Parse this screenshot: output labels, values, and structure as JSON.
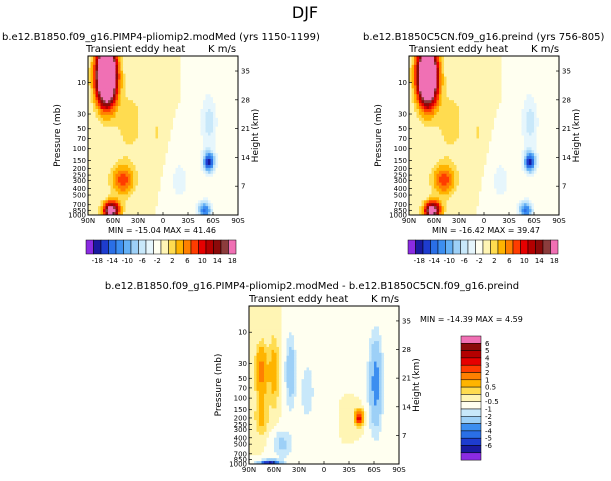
{
  "figure": {
    "title": "DJF",
    "plot_label": "Transient eddy heat",
    "units": "K m/s",
    "y_label": "Pressure (mb)",
    "y2_label": "Height (km)"
  },
  "axes": {
    "x_ticks": [
      "90N",
      "60N",
      "30N",
      "0",
      "30S",
      "60S",
      "90S"
    ],
    "x_values": [
      90,
      60,
      30,
      0,
      -30,
      -60,
      -90
    ],
    "p_ticks": [
      "10",
      "30",
      "50",
      "70",
      "100",
      "150",
      "200",
      "250",
      "300",
      "400",
      "500",
      "700",
      "850",
      "1000"
    ],
    "p_values": [
      10,
      30,
      50,
      70,
      100,
      150,
      200,
      250,
      300,
      400,
      500,
      700,
      850,
      1000
    ],
    "p_range": [
      1000,
      4
    ],
    "h_ticks": [
      "35",
      "28",
      "21",
      "14",
      "7"
    ],
    "h_values": [
      35,
      28,
      21,
      14,
      7
    ]
  },
  "colorbars": {
    "full": {
      "labels": [
        "-18",
        "-14",
        "-10",
        "-6",
        "-2",
        "2",
        "6",
        "10",
        "14",
        "18"
      ],
      "colors": [
        "#8b2be2",
        "#1a1aa0",
        "#1e3ccf",
        "#2a6fe6",
        "#3c8ef0",
        "#64b0f5",
        "#9dd0f7",
        "#c8e8fa",
        "#e6f6fc",
        "#fffff0",
        "#fff5b4",
        "#ffdc50",
        "#ffb400",
        "#ff8000",
        "#ff3c00",
        "#e60000",
        "#b40000",
        "#8c0a0a",
        "#8c3c3c",
        "#f070b4"
      ]
    },
    "diff": {
      "labels": [
        "6",
        "5",
        "4",
        "3",
        "2",
        "1",
        "0.5",
        "0",
        "-0.5",
        "-1",
        "-2",
        "-3",
        "-4",
        "-5",
        "-6"
      ],
      "colors": [
        "#f070b4",
        "#8c0a0a",
        "#b40000",
        "#e60000",
        "#ff3c00",
        "#ff8000",
        "#ffb400",
        "#ffdc50",
        "#fff5b4",
        "#fffff0",
        "#c8e8fa",
        "#9dd0f7",
        "#3c8ef0",
        "#2a6fe6",
        "#1e3ccf",
        "#1a1aa0",
        "#8b2be2"
      ]
    }
  },
  "panels": [
    {
      "id": "left",
      "title": "b.e12.B1850.f09_g16.PIMP4-pliomip2.modMed (yrs 1150-1199)",
      "stats": "MIN = -15.04   MAX = 41.46"
    },
    {
      "id": "right",
      "title": "b.e12.B1850C5CN.f09_g16.preind (yrs 756-805)",
      "stats": "MIN = -16.42   MAX = 39.47"
    },
    {
      "id": "diff",
      "title": "b.e12.B1850.f09_g16.PIMP4-pliomip2.modMed - b.e12.B1850C5CN.f09_g16.preind",
      "stats": "MIN = -14.39   MAX =   4.59"
    }
  ],
  "chart_data": [
    {
      "type": "heatmap",
      "title": "b.e12.B1850.f09_g16.PIMP4-pliomip2.modMed (yrs 1150-1199)",
      "subtitle": "Transient eddy heat (K m/s)",
      "xlabel": "Latitude",
      "ylabel": "Pressure (mb)",
      "y2label": "Height (km)",
      "xlim": [
        90,
        -90
      ],
      "ylim": [
        1000,
        4
      ],
      "min": -15.04,
      "max": 41.46,
      "levels": [
        -18,
        -14,
        -10,
        -6,
        -2,
        2,
        6,
        10,
        14,
        18
      ],
      "features": [
        {
          "lat": 68,
          "p": 12,
          "value": 41,
          "kind": "max"
        },
        {
          "lat": 62,
          "p": 800,
          "value": 18,
          "kind": "max"
        },
        {
          "lat": 48,
          "p": 250,
          "value": 12,
          "kind": "max"
        },
        {
          "lat": -55,
          "p": 150,
          "value": -15,
          "kind": "min"
        },
        {
          "lat": -50,
          "p": 800,
          "value": -12,
          "kind": "min"
        }
      ]
    },
    {
      "type": "heatmap",
      "title": "b.e12.B1850C5CN.f09_g16.preind (yrs 756-805)",
      "subtitle": "Transient eddy heat (K m/s)",
      "xlabel": "Latitude",
      "ylabel": "Pressure (mb)",
      "y2label": "Height (km)",
      "xlim": [
        90,
        -90
      ],
      "ylim": [
        1000,
        4
      ],
      "min": -16.42,
      "max": 39.47,
      "levels": [
        -18,
        -14,
        -10,
        -6,
        -2,
        2,
        6,
        10,
        14,
        18
      ],
      "features": [
        {
          "lat": 68,
          "p": 12,
          "value": 39,
          "kind": "max"
        },
        {
          "lat": 62,
          "p": 800,
          "value": 18,
          "kind": "max"
        },
        {
          "lat": 48,
          "p": 250,
          "value": 12,
          "kind": "max"
        },
        {
          "lat": -55,
          "p": 200,
          "value": -16,
          "kind": "min"
        },
        {
          "lat": -50,
          "p": 800,
          "value": -12,
          "kind": "min"
        }
      ]
    },
    {
      "type": "heatmap",
      "title": "b.e12.B1850.f09_g16.PIMP4-pliomip2.modMed - b.e12.B1850C5CN.f09_g16.preind",
      "subtitle": "Transient eddy heat (K m/s)",
      "xlabel": "Latitude",
      "ylabel": "Pressure (mb)",
      "y2label": "Height (km)",
      "xlim": [
        90,
        -90
      ],
      "ylim": [
        1000,
        4
      ],
      "min": -14.39,
      "max": 4.59,
      "levels": [
        -6,
        -5,
        -4,
        -3,
        -2,
        -1,
        -0.5,
        0,
        0.5,
        1,
        2,
        3,
        4,
        5,
        6
      ],
      "features": [
        {
          "lat": -62,
          "p": 60,
          "value": -3,
          "kind": "min"
        },
        {
          "lat": 75,
          "p": 40,
          "value": 3,
          "kind": "max"
        },
        {
          "lat": -42,
          "p": 200,
          "value": 4.5,
          "kind": "max"
        },
        {
          "lat": 40,
          "p": 30,
          "value": -2,
          "kind": "min"
        },
        {
          "lat": 60,
          "p": 1000,
          "value": -6,
          "kind": "min"
        }
      ]
    }
  ]
}
